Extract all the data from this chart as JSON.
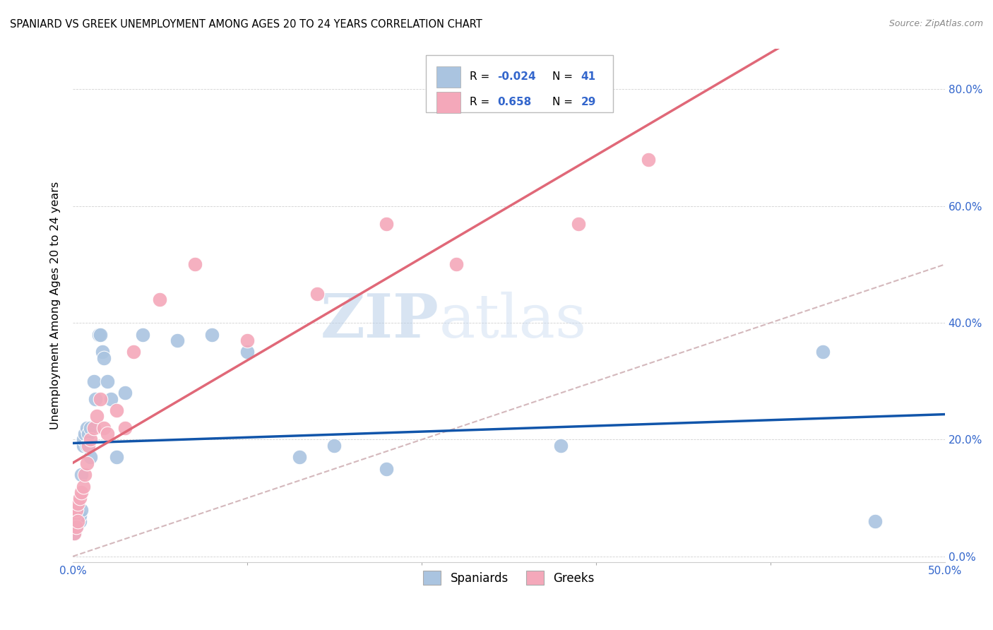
{
  "title": "SPANIARD VS GREEK UNEMPLOYMENT AMONG AGES 20 TO 24 YEARS CORRELATION CHART",
  "source": "Source: ZipAtlas.com",
  "ylabel": "Unemployment Among Ages 20 to 24 years",
  "xlim": [
    0.0,
    0.5
  ],
  "ylim": [
    -0.01,
    0.87
  ],
  "spaniard_color": "#aac4e0",
  "greek_color": "#f4a8ba",
  "spaniard_line_color": "#1155aa",
  "greek_line_color": "#e06878",
  "diagonal_color": "#d4b8bc",
  "watermark_zip": "ZIP",
  "watermark_atlas": "atlas",
  "spaniard_x": [
    0.001,
    0.001,
    0.001,
    0.002,
    0.002,
    0.002,
    0.003,
    0.003,
    0.003,
    0.004,
    0.004,
    0.005,
    0.005,
    0.006,
    0.006,
    0.007,
    0.008,
    0.008,
    0.009,
    0.01,
    0.01,
    0.012,
    0.013,
    0.015,
    0.016,
    0.017,
    0.018,
    0.02,
    0.022,
    0.025,
    0.03,
    0.04,
    0.06,
    0.08,
    0.1,
    0.13,
    0.15,
    0.18,
    0.28,
    0.43,
    0.46
  ],
  "spaniard_y": [
    0.04,
    0.06,
    0.07,
    0.05,
    0.07,
    0.08,
    0.06,
    0.07,
    0.08,
    0.06,
    0.07,
    0.08,
    0.14,
    0.19,
    0.2,
    0.21,
    0.19,
    0.22,
    0.21,
    0.17,
    0.22,
    0.3,
    0.27,
    0.38,
    0.38,
    0.35,
    0.34,
    0.3,
    0.27,
    0.17,
    0.28,
    0.38,
    0.37,
    0.38,
    0.35,
    0.17,
    0.19,
    0.15,
    0.19,
    0.35,
    0.06
  ],
  "greek_x": [
    0.001,
    0.001,
    0.002,
    0.002,
    0.003,
    0.003,
    0.004,
    0.005,
    0.006,
    0.007,
    0.008,
    0.009,
    0.01,
    0.012,
    0.014,
    0.016,
    0.018,
    0.02,
    0.025,
    0.03,
    0.035,
    0.05,
    0.07,
    0.1,
    0.14,
    0.18,
    0.22,
    0.29,
    0.33
  ],
  "greek_y": [
    0.04,
    0.07,
    0.05,
    0.08,
    0.06,
    0.09,
    0.1,
    0.11,
    0.12,
    0.14,
    0.16,
    0.19,
    0.2,
    0.22,
    0.24,
    0.27,
    0.22,
    0.21,
    0.25,
    0.22,
    0.35,
    0.44,
    0.5,
    0.37,
    0.45,
    0.57,
    0.5,
    0.57,
    0.68
  ]
}
